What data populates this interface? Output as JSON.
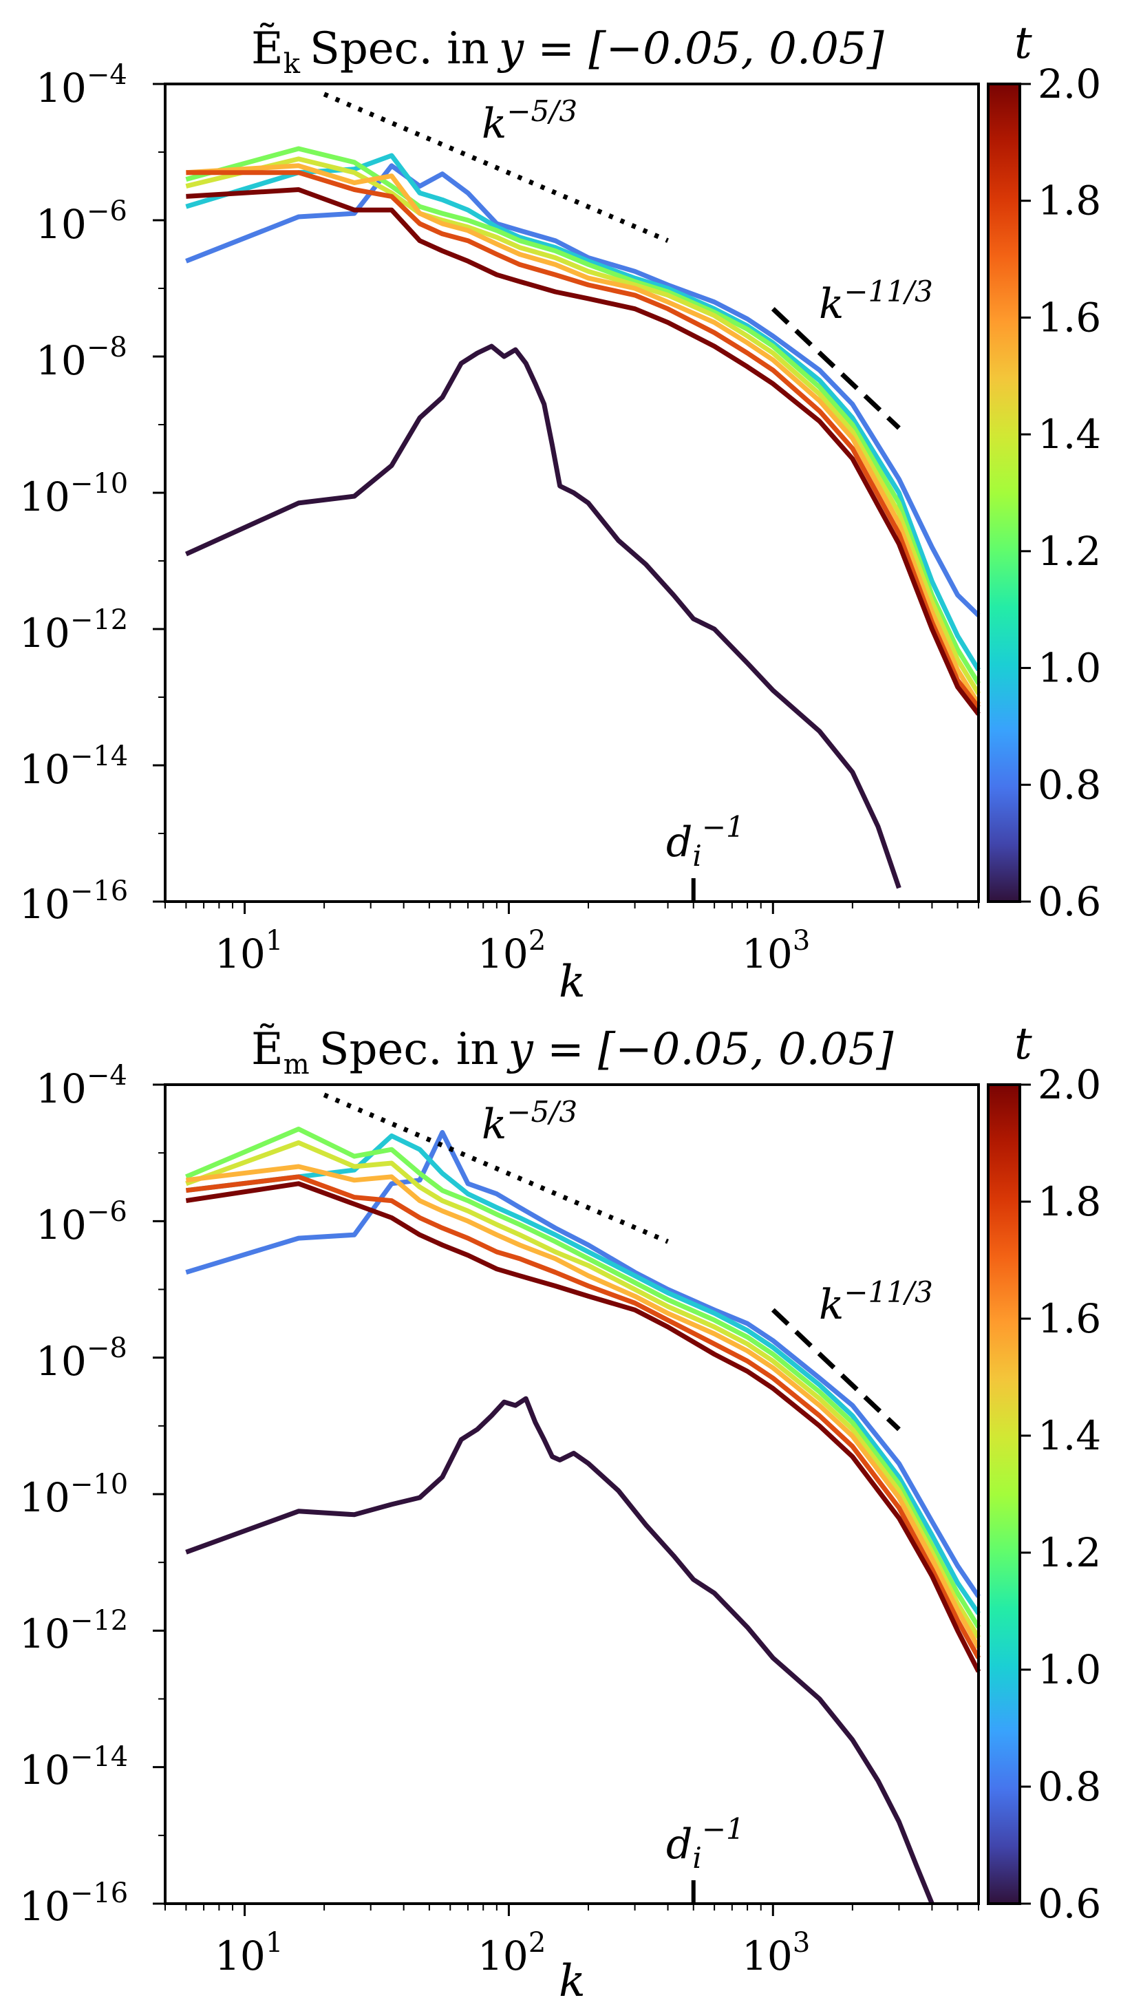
{
  "colors": {
    "t0.6": "#30123b",
    "t0.8": "#4a7ce6",
    "t1.0": "#23c7d4",
    "t1.2": "#7cf95a",
    "t1.4": "#d2e53a",
    "t1.6": "#fdb43a",
    "t1.7": "#f4822a",
    "t1.8": "#dd4c12",
    "t1.9": "#b42406",
    "t2.0": "#7a0403"
  },
  "chart_data": [
    {
      "type": "line",
      "title_symbol": "Ẽ",
      "title_subscript": "k",
      "title_text": "Spec. in",
      "title_range": "y = [−0.05, 0.05]",
      "xlabel": "k",
      "xscale": "log",
      "yscale": "log",
      "xlim": [
        5,
        6000
      ],
      "ylim": [
        1e-16,
        0.0001
      ],
      "xtick_labels": [
        {
          "base": "10",
          "exp": "1"
        },
        {
          "base": "10",
          "exp": "2"
        },
        {
          "base": "10",
          "exp": "3"
        }
      ],
      "ytick_labels": [
        {
          "base": "10",
          "exp": "−4"
        },
        {
          "base": "10",
          "exp": "−6"
        },
        {
          "base": "10",
          "exp": "−8"
        },
        {
          "base": "10",
          "exp": "−10"
        },
        {
          "base": "10",
          "exp": "−12"
        },
        {
          "base": "10",
          "exp": "−14"
        },
        {
          "base": "10",
          "exp": "−16"
        }
      ],
      "reference_lines": [
        {
          "label_base": "k",
          "label_exp": "−5/3",
          "style": "dotted",
          "k": [
            20,
            400
          ],
          "log10E": [
            -4.15,
            -6.3
          ]
        },
        {
          "label_base": "k",
          "label_exp": "−11/3",
          "style": "dashed",
          "k": [
            1000,
            3000
          ],
          "log10E": [
            -7.3,
            -9.05
          ]
        }
      ],
      "marker": {
        "label_base": "d",
        "label_sub": "i",
        "label_exp": "−1",
        "k": 500
      },
      "colorbar": {
        "label": "t",
        "range": [
          0.6,
          2.0
        ],
        "tick_labels": [
          "0.6",
          "0.8",
          "1.0",
          "1.2",
          "1.4",
          "1.6",
          "1.8",
          "2.0"
        ]
      },
      "series": [
        {
          "t": 0.6,
          "k": [
            6,
            16,
            26,
            36,
            46,
            56,
            66,
            76,
            86,
            96,
            106,
            116,
            126,
            136,
            146,
            156,
            176,
            200,
            260,
            330,
            420,
            500,
            600,
            800,
            1000,
            1500,
            2000,
            2500,
            3000
          ],
          "log10E": [
            -10.9,
            -10.15,
            -10.05,
            -9.6,
            -8.9,
            -8.6,
            -8.1,
            -7.95,
            -7.85,
            -8.0,
            -7.9,
            -8.1,
            -8.4,
            -8.7,
            -9.3,
            -9.9,
            -10.0,
            -10.15,
            -10.7,
            -11.05,
            -11.5,
            -11.85,
            -12.0,
            -12.5,
            -12.9,
            -13.5,
            -14.1,
            -14.9,
            -15.8
          ]
        },
        {
          "t": 0.8,
          "k": [
            6,
            16,
            26,
            36,
            46,
            56,
            70,
            90,
            110,
            150,
            200,
            300,
            400,
            600,
            800,
            1000,
            1500,
            2000,
            3000,
            4000,
            5000,
            6000
          ],
          "log10E": [
            -6.6,
            -5.95,
            -5.9,
            -5.2,
            -5.5,
            -5.32,
            -5.6,
            -6.05,
            -6.15,
            -6.3,
            -6.55,
            -6.75,
            -6.95,
            -7.2,
            -7.45,
            -7.7,
            -8.2,
            -8.7,
            -9.8,
            -10.8,
            -11.5,
            -11.8
          ]
        },
        {
          "t": 1.0,
          "k": [
            6,
            16,
            26,
            36,
            46,
            56,
            70,
            90,
            110,
            150,
            200,
            300,
            400,
            600,
            800,
            1000,
            1500,
            2000,
            3000,
            4000,
            5000,
            6000
          ],
          "log10E": [
            -5.8,
            -5.3,
            -5.25,
            -5.05,
            -5.6,
            -5.7,
            -5.85,
            -6.1,
            -6.25,
            -6.4,
            -6.6,
            -6.85,
            -7.0,
            -7.3,
            -7.55,
            -7.8,
            -8.35,
            -8.9,
            -10.0,
            -11.3,
            -12.1,
            -12.6
          ]
        },
        {
          "t": 1.2,
          "k": [
            6,
            16,
            26,
            36,
            46,
            56,
            70,
            90,
            110,
            150,
            200,
            300,
            400,
            600,
            800,
            1000,
            1500,
            2000,
            3000,
            4000,
            5000,
            6000
          ],
          "log10E": [
            -5.4,
            -4.95,
            -5.15,
            -5.5,
            -5.8,
            -5.9,
            -6.0,
            -6.15,
            -6.3,
            -6.45,
            -6.65,
            -6.9,
            -7.05,
            -7.35,
            -7.6,
            -7.85,
            -8.45,
            -9.0,
            -10.15,
            -11.5,
            -12.3,
            -12.8
          ]
        },
        {
          "t": 1.4,
          "k": [
            6,
            16,
            26,
            36,
            46,
            56,
            70,
            90,
            110,
            150,
            200,
            300,
            400,
            600,
            800,
            1000,
            1500,
            2000,
            3000,
            4000,
            5000,
            6000
          ],
          "log10E": [
            -5.5,
            -5.1,
            -5.3,
            -5.6,
            -5.9,
            -6.0,
            -6.1,
            -6.25,
            -6.4,
            -6.55,
            -6.75,
            -6.95,
            -7.1,
            -7.4,
            -7.7,
            -7.95,
            -8.55,
            -9.1,
            -10.3,
            -11.6,
            -12.45,
            -12.95
          ]
        },
        {
          "t": 1.6,
          "k": [
            6,
            16,
            26,
            36,
            46,
            56,
            70,
            90,
            110,
            150,
            200,
            300,
            400,
            600,
            800,
            1000,
            1500,
            2000,
            3000,
            4000,
            5000,
            6000
          ],
          "log10E": [
            -5.3,
            -5.2,
            -5.45,
            -5.35,
            -5.9,
            -6.05,
            -6.15,
            -6.35,
            -6.5,
            -6.65,
            -6.85,
            -7.0,
            -7.2,
            -7.5,
            -7.8,
            -8.05,
            -8.65,
            -9.2,
            -10.45,
            -11.75,
            -12.6,
            -13.1
          ]
        },
        {
          "t": 1.8,
          "k": [
            6,
            16,
            26,
            36,
            46,
            56,
            70,
            90,
            110,
            150,
            200,
            300,
            400,
            600,
            800,
            1000,
            1500,
            2000,
            3000,
            4000,
            5000,
            6000
          ],
          "log10E": [
            -5.3,
            -5.3,
            -5.55,
            -5.65,
            -6.05,
            -6.2,
            -6.3,
            -6.5,
            -6.65,
            -6.8,
            -6.95,
            -7.1,
            -7.3,
            -7.65,
            -7.95,
            -8.2,
            -8.8,
            -9.35,
            -10.6,
            -11.9,
            -12.75,
            -13.15
          ]
        },
        {
          "t": 2.0,
          "k": [
            6,
            16,
            26,
            36,
            46,
            56,
            70,
            90,
            110,
            150,
            200,
            300,
            400,
            600,
            800,
            1000,
            1500,
            2000,
            3000,
            4000,
            5000,
            6000
          ],
          "log10E": [
            -5.65,
            -5.55,
            -5.85,
            -5.85,
            -6.3,
            -6.45,
            -6.6,
            -6.8,
            -6.9,
            -7.05,
            -7.15,
            -7.3,
            -7.5,
            -7.85,
            -8.15,
            -8.4,
            -8.95,
            -9.5,
            -10.75,
            -12.0,
            -12.85,
            -13.25
          ]
        }
      ]
    },
    {
      "type": "line",
      "title_symbol": "Ẽ",
      "title_subscript": "m",
      "title_text": "Spec. in",
      "title_range": "y = [−0.05, 0.05]",
      "xlabel": "k",
      "xscale": "log",
      "yscale": "log",
      "xlim": [
        5,
        6000
      ],
      "ylim": [
        1e-16,
        0.0001
      ],
      "xtick_labels": [
        {
          "base": "10",
          "exp": "1"
        },
        {
          "base": "10",
          "exp": "2"
        },
        {
          "base": "10",
          "exp": "3"
        }
      ],
      "ytick_labels": [
        {
          "base": "10",
          "exp": "−4"
        },
        {
          "base": "10",
          "exp": "−6"
        },
        {
          "base": "10",
          "exp": "−8"
        },
        {
          "base": "10",
          "exp": "−10"
        },
        {
          "base": "10",
          "exp": "−12"
        },
        {
          "base": "10",
          "exp": "−14"
        },
        {
          "base": "10",
          "exp": "−16"
        }
      ],
      "reference_lines": [
        {
          "label_base": "k",
          "label_exp": "−5/3",
          "style": "dotted",
          "k": [
            20,
            400
          ],
          "log10E": [
            -4.15,
            -6.3
          ]
        },
        {
          "label_base": "k",
          "label_exp": "−11/3",
          "style": "dashed",
          "k": [
            1000,
            3000
          ],
          "log10E": [
            -7.3,
            -9.05
          ]
        }
      ],
      "marker": {
        "label_base": "d",
        "label_sub": "i",
        "label_exp": "−1",
        "k": 500
      },
      "colorbar": {
        "label": "t",
        "range": [
          0.6,
          2.0
        ],
        "tick_labels": [
          "0.6",
          "0.8",
          "1.0",
          "1.2",
          "1.4",
          "1.6",
          "1.8",
          "2.0"
        ]
      },
      "series": [
        {
          "t": 0.6,
          "k": [
            6,
            16,
            26,
            36,
            46,
            56,
            66,
            76,
            86,
            96,
            106,
            116,
            126,
            136,
            146,
            156,
            176,
            200,
            260,
            330,
            420,
            500,
            600,
            800,
            1000,
            1500,
            2000,
            2500,
            3000,
            3500,
            4000
          ],
          "log10E": [
            -10.85,
            -10.25,
            -10.3,
            -10.15,
            -10.05,
            -9.75,
            -9.2,
            -9.05,
            -8.85,
            -8.65,
            -8.7,
            -8.6,
            -8.95,
            -9.2,
            -9.45,
            -9.5,
            -9.4,
            -9.55,
            -9.95,
            -10.45,
            -10.9,
            -11.25,
            -11.45,
            -11.95,
            -12.4,
            -13.0,
            -13.6,
            -14.2,
            -14.8,
            -15.45,
            -16.0
          ]
        },
        {
          "t": 0.8,
          "k": [
            6,
            16,
            26,
            36,
            46,
            56,
            70,
            90,
            110,
            150,
            200,
            300,
            400,
            600,
            800,
            1000,
            1500,
            2000,
            3000,
            4000,
            5000,
            6000
          ],
          "log10E": [
            -6.75,
            -6.25,
            -6.2,
            -5.45,
            -5.4,
            -4.7,
            -5.45,
            -5.6,
            -5.8,
            -6.1,
            -6.35,
            -6.75,
            -7.0,
            -7.3,
            -7.5,
            -7.75,
            -8.3,
            -8.7,
            -9.55,
            -10.4,
            -11.05,
            -11.5
          ]
        },
        {
          "t": 1.0,
          "k": [
            6,
            16,
            26,
            36,
            46,
            56,
            70,
            90,
            110,
            150,
            200,
            300,
            400,
            600,
            800,
            1000,
            1500,
            2000,
            3000,
            4000,
            5000,
            6000
          ],
          "log10E": [
            -5.55,
            -5.35,
            -5.25,
            -4.75,
            -4.95,
            -5.3,
            -5.6,
            -5.8,
            -5.95,
            -6.2,
            -6.45,
            -6.8,
            -7.05,
            -7.35,
            -7.6,
            -7.85,
            -8.4,
            -8.85,
            -9.75,
            -10.6,
            -11.3,
            -11.75
          ]
        },
        {
          "t": 1.2,
          "k": [
            6,
            16,
            26,
            36,
            46,
            56,
            70,
            90,
            110,
            150,
            200,
            300,
            400,
            600,
            800,
            1000,
            1500,
            2000,
            3000,
            4000,
            5000,
            6000
          ],
          "log10E": [
            -5.35,
            -4.65,
            -5.05,
            -4.95,
            -5.3,
            -5.55,
            -5.7,
            -5.9,
            -6.05,
            -6.3,
            -6.55,
            -6.9,
            -7.15,
            -7.45,
            -7.7,
            -7.95,
            -8.5,
            -8.95,
            -9.85,
            -10.75,
            -11.45,
            -11.95
          ]
        },
        {
          "t": 1.4,
          "k": [
            6,
            16,
            26,
            36,
            46,
            56,
            70,
            90,
            110,
            150,
            200,
            300,
            400,
            600,
            800,
            1000,
            1500,
            2000,
            3000,
            4000,
            5000,
            6000
          ],
          "log10E": [
            -5.45,
            -4.85,
            -5.2,
            -5.15,
            -5.5,
            -5.7,
            -5.85,
            -6.05,
            -6.2,
            -6.45,
            -6.65,
            -7.0,
            -7.25,
            -7.55,
            -7.8,
            -8.05,
            -8.6,
            -9.05,
            -9.95,
            -10.85,
            -11.6,
            -12.1
          ]
        },
        {
          "t": 1.6,
          "k": [
            6,
            16,
            26,
            36,
            46,
            56,
            70,
            90,
            110,
            150,
            200,
            300,
            400,
            600,
            800,
            1000,
            1500,
            2000,
            3000,
            4000,
            5000,
            6000
          ],
          "log10E": [
            -5.4,
            -5.2,
            -5.4,
            -5.35,
            -5.7,
            -5.85,
            -6.0,
            -6.2,
            -6.35,
            -6.55,
            -6.8,
            -7.1,
            -7.35,
            -7.65,
            -7.9,
            -8.15,
            -8.7,
            -9.15,
            -10.05,
            -10.95,
            -11.7,
            -12.25
          ]
        },
        {
          "t": 1.8,
          "k": [
            6,
            16,
            26,
            36,
            46,
            56,
            70,
            90,
            110,
            150,
            200,
            300,
            400,
            600,
            800,
            1000,
            1500,
            2000,
            3000,
            4000,
            5000,
            6000
          ],
          "log10E": [
            -5.55,
            -5.35,
            -5.65,
            -5.7,
            -5.95,
            -6.1,
            -6.25,
            -6.45,
            -6.55,
            -6.75,
            -6.95,
            -7.2,
            -7.45,
            -7.8,
            -8.05,
            -8.3,
            -8.85,
            -9.3,
            -10.2,
            -11.1,
            -11.85,
            -12.4
          ]
        },
        {
          "t": 2.0,
          "k": [
            6,
            16,
            26,
            36,
            46,
            56,
            70,
            90,
            110,
            150,
            200,
            300,
            400,
            600,
            800,
            1000,
            1500,
            2000,
            3000,
            4000,
            5000,
            6000
          ],
          "log10E": [
            -5.7,
            -5.45,
            -5.75,
            -5.95,
            -6.2,
            -6.35,
            -6.5,
            -6.7,
            -6.8,
            -6.95,
            -7.1,
            -7.3,
            -7.55,
            -7.95,
            -8.2,
            -8.45,
            -9.0,
            -9.45,
            -10.35,
            -11.2,
            -12.0,
            -12.6
          ]
        }
      ]
    }
  ]
}
